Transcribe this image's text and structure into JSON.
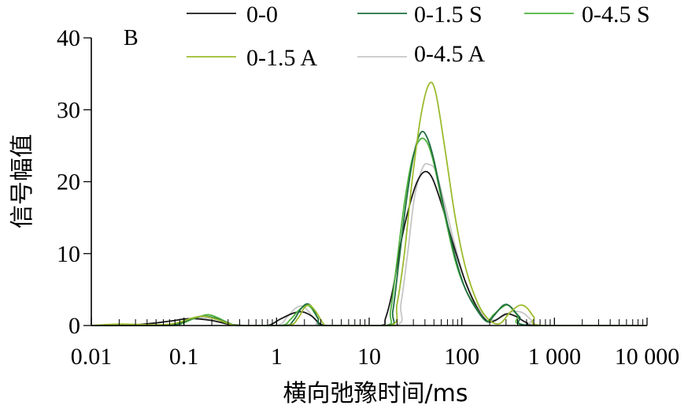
{
  "chart_data": {
    "type": "line",
    "panel_label": "B",
    "xlabel": "横向弛豫时间/ms",
    "ylabel": "信号幅值",
    "x_scale": "log",
    "xlim": [
      0.01,
      10000
    ],
    "ylim": [
      0,
      40
    ],
    "x_ticks": [
      {
        "value": 0.01,
        "label": "0.01"
      },
      {
        "value": 0.1,
        "label": "0.1"
      },
      {
        "value": 1,
        "label": "1"
      },
      {
        "value": 10,
        "label": "10"
      },
      {
        "value": 100,
        "label": "100"
      },
      {
        "value": 1000,
        "label": "1 000"
      },
      {
        "value": 10000,
        "label": "10 000"
      }
    ],
    "y_ticks": [
      {
        "value": 0,
        "label": "0"
      },
      {
        "value": 10,
        "label": "10"
      },
      {
        "value": 20,
        "label": "20"
      },
      {
        "value": 30,
        "label": "30"
      },
      {
        "value": 40,
        "label": "40"
      }
    ],
    "grid": false,
    "legend_position": "top",
    "series": [
      {
        "name": "0-0",
        "color": "#1a1a1a",
        "points": [
          [
            0.01,
            0
          ],
          [
            0.03,
            0.1
          ],
          [
            0.07,
            0.6
          ],
          [
            0.1,
            0.9
          ],
          [
            0.13,
            0.95
          ],
          [
            0.2,
            0.7
          ],
          [
            0.3,
            0.2
          ],
          [
            0.45,
            0
          ],
          [
            0.8,
            0
          ],
          [
            1.1,
            0.9
          ],
          [
            1.5,
            1.7
          ],
          [
            1.9,
            1.9
          ],
          [
            2.4,
            1.3
          ],
          [
            3,
            0.2
          ],
          [
            4,
            0
          ],
          [
            13,
            0
          ],
          [
            15,
            1
          ],
          [
            18,
            5
          ],
          [
            22,
            11.5
          ],
          [
            27,
            16.5
          ],
          [
            33,
            20
          ],
          [
            40,
            21.4
          ],
          [
            48,
            20.5
          ],
          [
            60,
            17
          ],
          [
            80,
            11.5
          ],
          [
            110,
            6
          ],
          [
            150,
            2.2
          ],
          [
            190,
            0.6
          ],
          [
            230,
            0.7
          ],
          [
            300,
            1.6
          ],
          [
            380,
            1.3
          ],
          [
            500,
            0.4
          ],
          [
            700,
            0
          ],
          [
            10000,
            0
          ]
        ]
      },
      {
        "name": "0-1.5 S",
        "color": "#1f6e3f",
        "points": [
          [
            0.01,
            0
          ],
          [
            0.06,
            0
          ],
          [
            0.09,
            0.3
          ],
          [
            0.13,
            1.1
          ],
          [
            0.17,
            1.3
          ],
          [
            0.22,
            1.0
          ],
          [
            0.3,
            0.35
          ],
          [
            0.4,
            0
          ],
          [
            1.2,
            0
          ],
          [
            1.5,
            0.6
          ],
          [
            1.8,
            2.2
          ],
          [
            2.1,
            3.0
          ],
          [
            2.4,
            2.6
          ],
          [
            2.8,
            1.0
          ],
          [
            3.3,
            0
          ],
          [
            16,
            0
          ],
          [
            18,
            2
          ],
          [
            21,
            9
          ],
          [
            25,
            17
          ],
          [
            30,
            23.5
          ],
          [
            36,
            26.8
          ],
          [
            42,
            26.2
          ],
          [
            50,
            23
          ],
          [
            65,
            16
          ],
          [
            85,
            9.5
          ],
          [
            110,
            5
          ],
          [
            150,
            1.9
          ],
          [
            190,
            0.5
          ],
          [
            220,
            1.3
          ],
          [
            280,
            2.8
          ],
          [
            330,
            2.7
          ],
          [
            420,
            1.2
          ],
          [
            550,
            0
          ],
          [
            10000,
            0
          ]
        ]
      },
      {
        "name": "0-4.5 S",
        "color": "#4fb33f",
        "points": [
          [
            0.01,
            0
          ],
          [
            0.06,
            0
          ],
          [
            0.09,
            0.2
          ],
          [
            0.13,
            1.0
          ],
          [
            0.18,
            1.5
          ],
          [
            0.23,
            1.1
          ],
          [
            0.3,
            0.4
          ],
          [
            0.4,
            0
          ],
          [
            1.1,
            0
          ],
          [
            1.4,
            0.8
          ],
          [
            1.7,
            2.0
          ],
          [
            2.05,
            2.8
          ],
          [
            2.35,
            2.5
          ],
          [
            2.8,
            1.0
          ],
          [
            3.3,
            0
          ],
          [
            15,
            0
          ],
          [
            17,
            2
          ],
          [
            20,
            9
          ],
          [
            24,
            17
          ],
          [
            29,
            23
          ],
          [
            35,
            25.8
          ],
          [
            42,
            25.5
          ],
          [
            50,
            22.5
          ],
          [
            65,
            15.5
          ],
          [
            85,
            9
          ],
          [
            110,
            5
          ],
          [
            150,
            2.0
          ],
          [
            185,
            0.6
          ],
          [
            220,
            1.5
          ],
          [
            270,
            2.5
          ],
          [
            320,
            2.8
          ],
          [
            400,
            1.4
          ],
          [
            520,
            0
          ],
          [
            10000,
            0
          ]
        ]
      },
      {
        "name": "0-1.5 A",
        "color": "#9cbb2d",
        "points": [
          [
            0.01,
            0
          ],
          [
            0.02,
            0.2
          ],
          [
            0.05,
            0.1
          ],
          [
            0.08,
            0.3
          ],
          [
            0.12,
            1.0
          ],
          [
            0.16,
            1.3
          ],
          [
            0.22,
            0.9
          ],
          [
            0.3,
            0.3
          ],
          [
            0.4,
            0
          ],
          [
            1.3,
            0
          ],
          [
            1.7,
            1.0
          ],
          [
            2.0,
            2.5
          ],
          [
            2.3,
            2.8
          ],
          [
            2.7,
            1.8
          ],
          [
            3.2,
            0.3
          ],
          [
            3.8,
            0
          ],
          [
            17,
            0
          ],
          [
            20,
            3
          ],
          [
            24,
            10
          ],
          [
            29,
            20
          ],
          [
            36,
            29
          ],
          [
            44,
            33.5
          ],
          [
            52,
            32.5
          ],
          [
            65,
            25
          ],
          [
            85,
            15
          ],
          [
            110,
            8
          ],
          [
            150,
            3
          ],
          [
            200,
            0.7
          ],
          [
            260,
            0.3
          ],
          [
            330,
            1.8
          ],
          [
            420,
            2.8
          ],
          [
            500,
            2.5
          ],
          [
            600,
            1.2
          ],
          [
            750,
            0
          ],
          [
            10000,
            0
          ]
        ]
      },
      {
        "name": "0-4.5 A",
        "color": "#c6c6c6",
        "points": [
          [
            0.01,
            0
          ],
          [
            0.06,
            0
          ],
          [
            0.09,
            0.4
          ],
          [
            0.13,
            1.0
          ],
          [
            0.17,
            1.1
          ],
          [
            0.23,
            0.8
          ],
          [
            0.3,
            0.3
          ],
          [
            0.4,
            0
          ],
          [
            1.0,
            0
          ],
          [
            1.3,
            1.2
          ],
          [
            1.6,
            2.4
          ],
          [
            1.9,
            2.7
          ],
          [
            2.2,
            2.0
          ],
          [
            2.7,
            0.6
          ],
          [
            3.2,
            0
          ],
          [
            19,
            0
          ],
          [
            22,
            3
          ],
          [
            26,
            10
          ],
          [
            31,
            18
          ],
          [
            38,
            22
          ],
          [
            44,
            22.4
          ],
          [
            52,
            21.5
          ],
          [
            65,
            17
          ],
          [
            85,
            11
          ],
          [
            110,
            6
          ],
          [
            150,
            2.5
          ],
          [
            200,
            0.8
          ],
          [
            260,
            1.1
          ],
          [
            350,
            1.9
          ],
          [
            450,
            1.8
          ],
          [
            560,
            0.8
          ],
          [
            700,
            0
          ],
          [
            10000,
            0
          ]
        ]
      }
    ]
  }
}
